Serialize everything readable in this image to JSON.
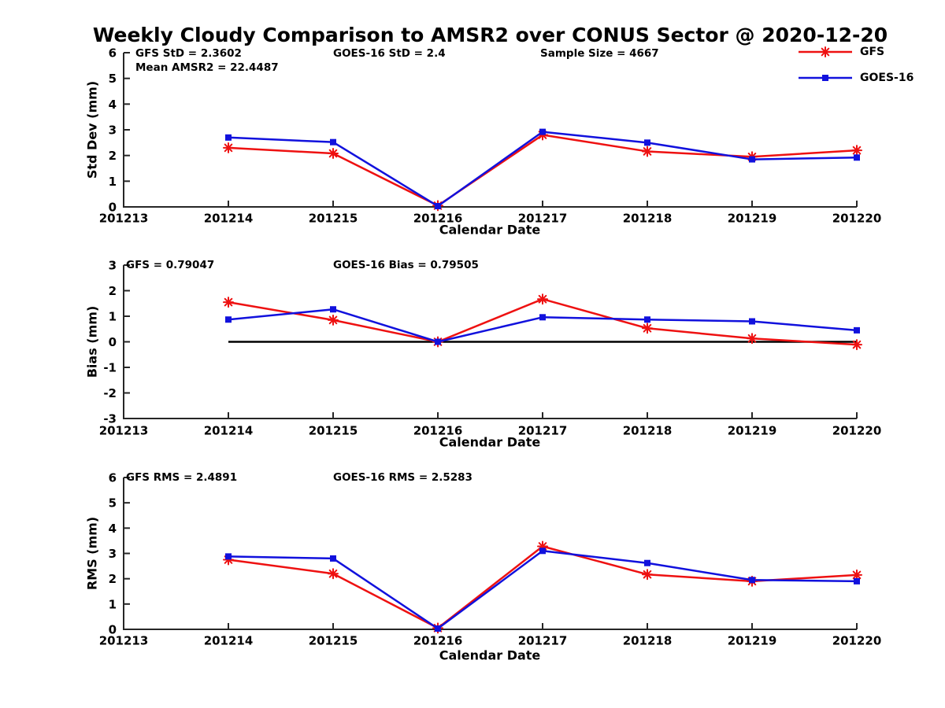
{
  "title": "Weekly Cloudy Comparison to AMSR2 over CONUS Sector @ 2020-12-20",
  "legend": {
    "position": "top-right",
    "items": [
      {
        "label": "GFS",
        "color": "#EE1111",
        "marker": "asterisk"
      },
      {
        "label": "GOES-16",
        "color": "#1111DD",
        "marker": "square"
      }
    ]
  },
  "colors": {
    "gfs": "#EE1111",
    "goes16": "#1111DD",
    "axis": "#262626",
    "text": "#000000",
    "zero_line": "#000000",
    "background": "#ffffff"
  },
  "chart_data": [
    {
      "type": "line",
      "name": "std-dev-subplot",
      "ylabel": "Std Dev (mm)",
      "xlabel": "Calendar Date",
      "ylim": [
        0,
        6
      ],
      "yticks": [
        0,
        1,
        2,
        3,
        4,
        5,
        6
      ],
      "grid": false,
      "categories": [
        "201213",
        "201214",
        "201215",
        "201216",
        "201217",
        "201218",
        "201219",
        "201220"
      ],
      "annotations": [
        "GFS StD = 2.3602",
        "Mean AMSR2 = 22.4487",
        "GOES-16 StD = 2.4",
        "Sample Size = 4667"
      ],
      "series": [
        {
          "name": "GFS",
          "color": "#EE1111",
          "marker": "asterisk",
          "values": [
            null,
            2.3,
            2.08,
            0.05,
            2.8,
            2.16,
            1.95,
            2.2
          ]
        },
        {
          "name": "GOES-16",
          "color": "#1111DD",
          "marker": "square",
          "values": [
            null,
            2.7,
            2.52,
            0.03,
            2.92,
            2.5,
            1.85,
            1.92
          ]
        }
      ]
    },
    {
      "type": "line",
      "name": "bias-subplot",
      "ylabel": "Bias (mm)",
      "xlabel": "Calendar Date",
      "ylim": [
        -3,
        3
      ],
      "yticks": [
        -3,
        -2,
        -1,
        0,
        1,
        2,
        3
      ],
      "grid": false,
      "categories": [
        "201213",
        "201214",
        "201215",
        "201216",
        "201217",
        "201218",
        "201219",
        "201220"
      ],
      "annotations": [
        "GFS = 0.79047",
        "GOES-16 Bias  = 0.79505"
      ],
      "zero_line": {
        "value": 0,
        "from_index": 1,
        "to_index": 7
      },
      "series": [
        {
          "name": "GFS",
          "color": "#EE1111",
          "marker": "asterisk",
          "values": [
            null,
            1.55,
            0.85,
            0.0,
            1.67,
            0.53,
            0.13,
            -0.11
          ]
        },
        {
          "name": "GOES-16",
          "color": "#1111DD",
          "marker": "square",
          "values": [
            null,
            0.87,
            1.27,
            0.0,
            0.96,
            0.87,
            0.8,
            0.45
          ]
        }
      ]
    },
    {
      "type": "line",
      "name": "rms-subplot",
      "ylabel": "RMS (mm)",
      "xlabel": "Calendar Date",
      "ylim": [
        0,
        6
      ],
      "yticks": [
        0,
        1,
        2,
        3,
        4,
        5,
        6
      ],
      "grid": false,
      "categories": [
        "201213",
        "201214",
        "201215",
        "201216",
        "201217",
        "201218",
        "201219",
        "201220"
      ],
      "annotations": [
        "GFS RMS = 2.4891",
        "GOES-16 RMS = 2.5283"
      ],
      "series": [
        {
          "name": "GFS",
          "color": "#EE1111",
          "marker": "asterisk",
          "values": [
            null,
            2.75,
            2.2,
            0.05,
            3.28,
            2.17,
            1.9,
            2.15
          ]
        },
        {
          "name": "GOES-16",
          "color": "#1111DD",
          "marker": "square",
          "values": [
            null,
            2.88,
            2.8,
            0.03,
            3.1,
            2.62,
            1.95,
            1.9
          ]
        }
      ]
    }
  ]
}
